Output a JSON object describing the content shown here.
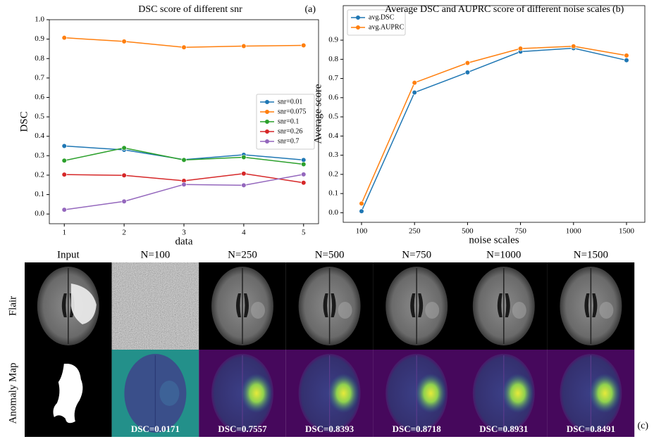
{
  "chart_data": [
    {
      "type": "line",
      "title": "DSC score of different snr",
      "panel_label": "(a)",
      "xlabel": "data",
      "ylabel": "DSC",
      "x": [
        1,
        2,
        3,
        4,
        5
      ],
      "xlim": [
        0.75,
        5.25
      ],
      "xticks": [
        1,
        2,
        3,
        4,
        5
      ],
      "ylim": [
        -0.05,
        1.0
      ],
      "yticks": [
        {
          "value": 0,
          "label": "0.0"
        },
        0.1,
        0.2,
        0.3,
        0.4,
        0.5,
        0.6,
        0.7,
        0.8,
        0.9,
        {
          "value": 1,
          "label": "1.0"
        }
      ],
      "legend": "center right",
      "series": [
        {
          "name": "snr=0.01",
          "color": "#1f77b4",
          "values": [
            0.35,
            0.33,
            0.28,
            0.305,
            0.278
          ]
        },
        {
          "name": "snr=0.075",
          "color": "#ff7f0e",
          "values": [
            0.907,
            0.888,
            0.858,
            0.864,
            0.868
          ]
        },
        {
          "name": "snr=0.1",
          "color": "#2ca02c",
          "values": [
            0.275,
            0.34,
            0.278,
            0.292,
            0.256
          ]
        },
        {
          "name": "snr=0.26",
          "color": "#d62728",
          "values": [
            0.203,
            0.199,
            0.171,
            0.208,
            0.161
          ]
        },
        {
          "name": "snr=0.7",
          "color": "#9467bd",
          "values": [
            0.022,
            0.065,
            0.152,
            0.148,
            0.204
          ]
        }
      ]
    },
    {
      "type": "line",
      "title": "Average DSC and AUPRC score of different noise scales",
      "panel_label": "(b)",
      "xlabel": "noise scales",
      "ylabel": "Average score",
      "categories": [
        "100",
        "250",
        "500",
        "750",
        "1000",
        "1500"
      ],
      "ylim": [
        -0.05,
        1.08
      ],
      "yticks": [
        {
          "value": 0,
          "label": "0.0"
        },
        0.1,
        0.2,
        0.3,
        0.4,
        0.5,
        0.6,
        0.7,
        0.8,
        0.9
      ],
      "legend": "upper left",
      "series": [
        {
          "name": "avg.DSC",
          "color": "#1f77b4",
          "values": [
            0.008,
            0.627,
            0.732,
            0.84,
            0.858,
            0.795
          ]
        },
        {
          "name": "avg.AUPRC",
          "color": "#ff7f0e",
          "values": [
            0.048,
            0.678,
            0.781,
            0.856,
            0.868,
            0.82
          ]
        }
      ]
    }
  ],
  "figure_c": {
    "panel_label": "(c)",
    "columns": [
      "Input",
      "N=100",
      "N=250",
      "N=500",
      "N=750",
      "N=1000",
      "N=1500"
    ],
    "rows": [
      "Flair",
      "Anomaly Map"
    ],
    "dsc_labels": [
      "DSC=0.0171",
      "DSC=0.7557",
      "DSC=0.8393",
      "DSC=0.8718",
      "DSC=0.8931",
      "DSC=0.8491"
    ]
  }
}
